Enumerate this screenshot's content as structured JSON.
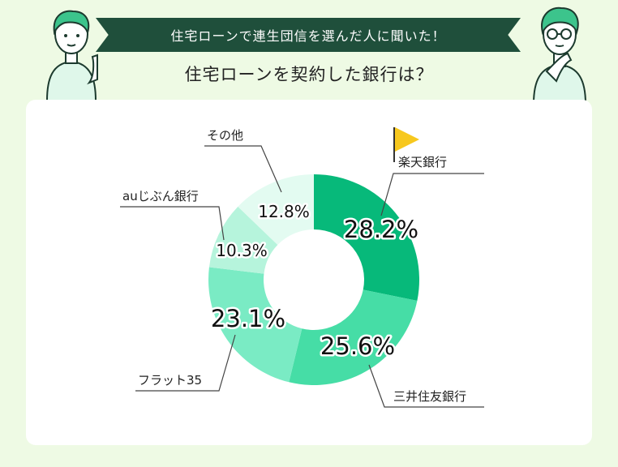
{
  "header": {
    "banner_text": "住宅ローンで連生団信を選んだ人に聞いた！",
    "subtitle": "住宅ローンを契約した銀行は？"
  },
  "colors": {
    "background": "#eefae4",
    "banner": "#1f4f3b",
    "flag": "#f7c81e"
  },
  "icons": [
    "person-thinking-left-icon",
    "person-thinking-right-icon",
    "flag-icon"
  ],
  "chart_data": {
    "type": "pie",
    "donut": true,
    "categories": [
      "楽天銀行",
      "三井住友銀行",
      "フラット35",
      "auじぶん銀行",
      "その他"
    ],
    "values": [
      28.2,
      25.6,
      23.1,
      10.3,
      12.8
    ],
    "value_labels": [
      "28.2%",
      "25.6%",
      "23.1%",
      "10.3%",
      "12.8%"
    ],
    "colors": [
      "#07b97a",
      "#46dda6",
      "#7aebc4",
      "#b6f4dc",
      "#e3fbf1"
    ]
  }
}
